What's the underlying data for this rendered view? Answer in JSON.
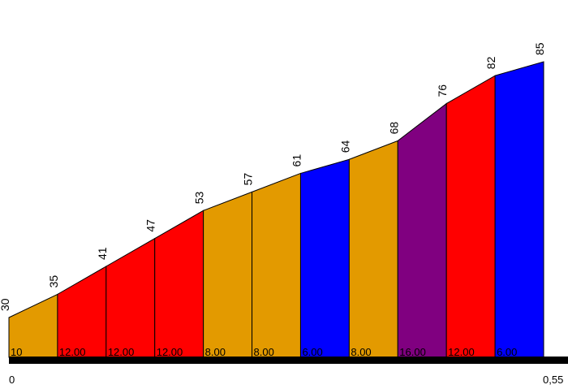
{
  "chart_data": {
    "type": "area",
    "x_start_label": "0",
    "x_end_label": "0,55",
    "elevations": [
      30,
      35,
      41,
      47,
      53,
      57,
      61,
      64,
      68,
      76,
      82,
      85
    ],
    "segments": [
      {
        "gradient_label": "10",
        "color": "#E39A00"
      },
      {
        "gradient_label": "12.00",
        "color": "#FF0000"
      },
      {
        "gradient_label": "12.00",
        "color": "#FF0000"
      },
      {
        "gradient_label": "12.00",
        "color": "#FF0000"
      },
      {
        "gradient_label": "8.00",
        "color": "#E39A00"
      },
      {
        "gradient_label": "8.00",
        "color": "#E39A00"
      },
      {
        "gradient_label": "6.00",
        "color": "#0000FF"
      },
      {
        "gradient_label": "8.00",
        "color": "#E39A00"
      },
      {
        "gradient_label": "16.00",
        "color": "#800080"
      },
      {
        "gradient_label": "12.00",
        "color": "#FF0000"
      },
      {
        "gradient_label": "6.00",
        "color": "#0000FF"
      }
    ]
  }
}
